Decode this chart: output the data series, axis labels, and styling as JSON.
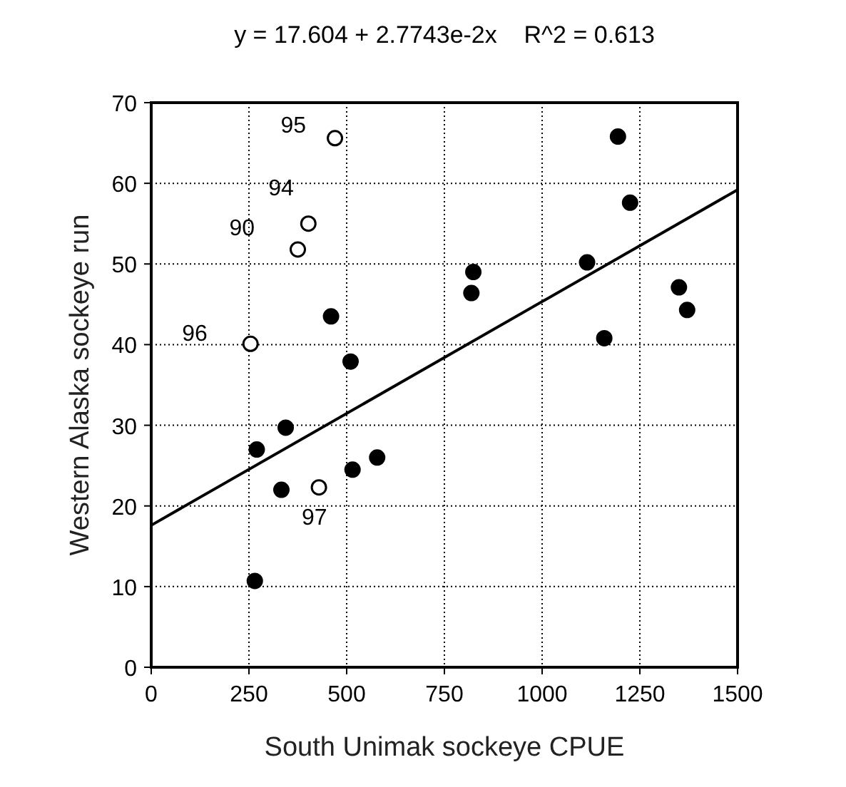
{
  "chart_data": {
    "type": "scatter",
    "title": "y = 17.604 + 2.7743e-2x    R^2 = 0.613",
    "xlabel": "South Unimak sockeye CPUE",
    "ylabel": "Western Alaska sockeye run",
    "xlim": [
      0,
      1500
    ],
    "xticks": [
      0,
      250,
      500,
      750,
      1000,
      1250,
      1500
    ],
    "ylim": [
      0,
      70
    ],
    "yticks": [
      0,
      10,
      20,
      30,
      40,
      50,
      60,
      70
    ],
    "grid": true,
    "marker": "circle",
    "series": [
      {
        "color": "#000000",
        "x": [
          460,
          510,
          344,
          270,
          333,
          515,
          578,
          265,
          1194,
          1225,
          1115,
          824,
          819,
          1350,
          1371,
          1159
        ],
        "values": [
          43.5,
          37.9,
          29.7,
          27.0,
          22.0,
          24.5,
          26.0,
          10.7,
          65.8,
          57.6,
          50.2,
          49.0,
          46.4,
          47.1,
          44.3,
          40.8
        ]
      },
      {
        "color": "#ffffff",
        "x": [
          470,
          402,
          375,
          254,
          429
        ],
        "values": [
          65.6,
          55.0,
          51.8,
          40.1,
          22.3
        ]
      },
      {
        "type": "line",
        "color": "#000000",
        "line_style": "solid",
        "marker": "none",
        "x": [
          0,
          1500
        ],
        "values": [
          17.6,
          59.2
        ]
      }
    ],
    "annotations": [
      {
        "text": "95",
        "x": 470,
        "y": 65.6
      },
      {
        "text": "94",
        "x": 402,
        "y": 55.0
      },
      {
        "text": "90",
        "x": 375,
        "y": 51.8
      },
      {
        "text": "96",
        "x": 254,
        "y": 40.1
      },
      {
        "text": "97",
        "x": 429,
        "y": 22.3
      }
    ]
  }
}
